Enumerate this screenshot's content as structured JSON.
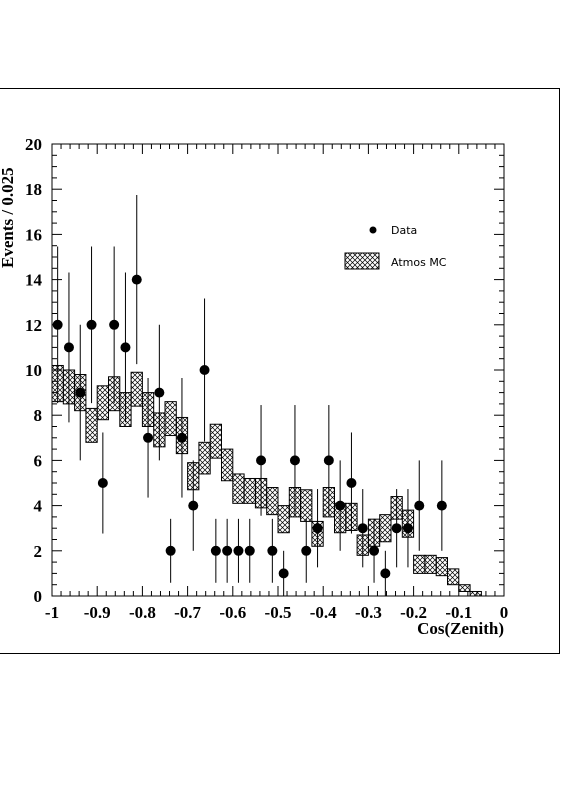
{
  "chart_data": {
    "type": "scatter",
    "title": "",
    "xlabel": "Cos(Zenith)",
    "ylabel": "Events / 0.025",
    "xlim": [
      -1,
      0
    ],
    "ylim": [
      0,
      20
    ],
    "grid": false,
    "legend_position": "top-right",
    "x_ticks": [
      {
        "value": -1,
        "label": "-1"
      },
      {
        "value": -0.9,
        "label": "-0.9"
      },
      {
        "value": -0.8,
        "label": "-0.8"
      },
      {
        "value": -0.7,
        "label": "-0.7"
      },
      {
        "value": -0.6,
        "label": "-0.6"
      },
      {
        "value": -0.5,
        "label": "-0.5"
      },
      {
        "value": -0.4,
        "label": "-0.4"
      },
      {
        "value": -0.3,
        "label": "-0.3"
      },
      {
        "value": -0.2,
        "label": "-0.2"
      },
      {
        "value": -0.1,
        "label": "-0.1"
      },
      {
        "value": 0,
        "label": "0"
      }
    ],
    "y_ticks": [
      {
        "value": 0,
        "label": "0"
      },
      {
        "value": 2,
        "label": "2"
      },
      {
        "value": 4,
        "label": "4"
      },
      {
        "value": 6,
        "label": "6"
      },
      {
        "value": 8,
        "label": "8"
      },
      {
        "value": 10,
        "label": "10"
      },
      {
        "value": 12,
        "label": "12"
      },
      {
        "value": 14,
        "label": "14"
      },
      {
        "value": 16,
        "label": "16"
      },
      {
        "value": 18,
        "label": "18"
      },
      {
        "value": 20,
        "label": "20"
      }
    ],
    "series": [
      {
        "name": "Data",
        "kind": "points-with-errors",
        "points": [
          {
            "x": -0.9875,
            "y": 12
          },
          {
            "x": -0.9625,
            "y": 11
          },
          {
            "x": -0.9375,
            "y": 9
          },
          {
            "x": -0.9125,
            "y": 12
          },
          {
            "x": -0.8875,
            "y": 5
          },
          {
            "x": -0.8625,
            "y": 12
          },
          {
            "x": -0.8375,
            "y": 11
          },
          {
            "x": -0.8125,
            "y": 14
          },
          {
            "x": -0.7875,
            "y": 7
          },
          {
            "x": -0.7625,
            "y": 9
          },
          {
            "x": -0.7375,
            "y": 2
          },
          {
            "x": -0.7125,
            "y": 7
          },
          {
            "x": -0.6875,
            "y": 4
          },
          {
            "x": -0.6625,
            "y": 10
          },
          {
            "x": -0.6375,
            "y": 2
          },
          {
            "x": -0.6125,
            "y": 2
          },
          {
            "x": -0.5875,
            "y": 2
          },
          {
            "x": -0.5625,
            "y": 2
          },
          {
            "x": -0.5375,
            "y": 6
          },
          {
            "x": -0.5125,
            "y": 2
          },
          {
            "x": -0.4875,
            "y": 1
          },
          {
            "x": -0.4625,
            "y": 6
          },
          {
            "x": -0.4375,
            "y": 2
          },
          {
            "x": -0.4125,
            "y": 3
          },
          {
            "x": -0.3875,
            "y": 6
          },
          {
            "x": -0.3625,
            "y": 4
          },
          {
            "x": -0.3375,
            "y": 5
          },
          {
            "x": -0.3125,
            "y": 3
          },
          {
            "x": -0.2875,
            "y": 2
          },
          {
            "x": -0.2625,
            "y": 1
          },
          {
            "x": -0.2375,
            "y": 3
          },
          {
            "x": -0.2125,
            "y": 3
          },
          {
            "x": -0.1875,
            "y": 4
          },
          {
            "x": -0.1375,
            "y": 4
          }
        ]
      },
      {
        "name": "Atmos MC",
        "kind": "hatched-band",
        "bins": [
          {
            "x0": -1.0,
            "x1": -0.975,
            "lo": 8.6,
            "hi": 10.2
          },
          {
            "x0": -0.975,
            "x1": -0.95,
            "lo": 8.5,
            "hi": 10.0
          },
          {
            "x0": -0.95,
            "x1": -0.925,
            "lo": 8.2,
            "hi": 9.8
          },
          {
            "x0": -0.925,
            "x1": -0.9,
            "lo": 6.8,
            "hi": 8.3
          },
          {
            "x0": -0.9,
            "x1": -0.875,
            "lo": 7.8,
            "hi": 9.3
          },
          {
            "x0": -0.875,
            "x1": -0.85,
            "lo": 8.2,
            "hi": 9.7
          },
          {
            "x0": -0.85,
            "x1": -0.825,
            "lo": 7.5,
            "hi": 9.0
          },
          {
            "x0": -0.825,
            "x1": -0.8,
            "lo": 8.4,
            "hi": 9.9
          },
          {
            "x0": -0.8,
            "x1": -0.775,
            "lo": 7.5,
            "hi": 9.0
          },
          {
            "x0": -0.775,
            "x1": -0.75,
            "lo": 6.6,
            "hi": 8.1
          },
          {
            "x0": -0.75,
            "x1": -0.725,
            "lo": 7.1,
            "hi": 8.6
          },
          {
            "x0": -0.725,
            "x1": -0.7,
            "lo": 6.3,
            "hi": 7.9
          },
          {
            "x0": -0.7,
            "x1": -0.675,
            "lo": 4.7,
            "hi": 5.9
          },
          {
            "x0": -0.675,
            "x1": -0.65,
            "lo": 5.4,
            "hi": 6.8
          },
          {
            "x0": -0.65,
            "x1": -0.625,
            "lo": 6.1,
            "hi": 7.6
          },
          {
            "x0": -0.625,
            "x1": -0.6,
            "lo": 5.1,
            "hi": 6.5
          },
          {
            "x0": -0.6,
            "x1": -0.575,
            "lo": 4.1,
            "hi": 5.4
          },
          {
            "x0": -0.575,
            "x1": -0.55,
            "lo": 4.1,
            "hi": 5.2
          },
          {
            "x0": -0.55,
            "x1": -0.525,
            "lo": 3.9,
            "hi": 5.2
          },
          {
            "x0": -0.525,
            "x1": -0.5,
            "lo": 3.6,
            "hi": 4.8
          },
          {
            "x0": -0.5,
            "x1": -0.475,
            "lo": 2.8,
            "hi": 4.0
          },
          {
            "x0": -0.475,
            "x1": -0.45,
            "lo": 3.5,
            "hi": 4.8
          },
          {
            "x0": -0.45,
            "x1": -0.425,
            "lo": 3.3,
            "hi": 4.7
          },
          {
            "x0": -0.425,
            "x1": -0.4,
            "lo": 2.2,
            "hi": 3.3
          },
          {
            "x0": -0.4,
            "x1": -0.375,
            "lo": 3.5,
            "hi": 4.8
          },
          {
            "x0": -0.375,
            "x1": -0.35,
            "lo": 2.8,
            "hi": 4.1
          },
          {
            "x0": -0.35,
            "x1": -0.325,
            "lo": 2.9,
            "hi": 4.1
          },
          {
            "x0": -0.325,
            "x1": -0.3,
            "lo": 1.8,
            "hi": 2.7
          },
          {
            "x0": -0.3,
            "x1": -0.275,
            "lo": 2.2,
            "hi": 3.4
          },
          {
            "x0": -0.275,
            "x1": -0.25,
            "lo": 2.4,
            "hi": 3.6
          },
          {
            "x0": -0.25,
            "x1": -0.225,
            "lo": 3.4,
            "hi": 4.4
          },
          {
            "x0": -0.225,
            "x1": -0.2,
            "lo": 2.6,
            "hi": 3.8
          },
          {
            "x0": -0.2,
            "x1": -0.175,
            "lo": 1.0,
            "hi": 1.8
          },
          {
            "x0": -0.175,
            "x1": -0.15,
            "lo": 1.0,
            "hi": 1.8
          },
          {
            "x0": -0.15,
            "x1": -0.125,
            "lo": 0.9,
            "hi": 1.7
          },
          {
            "x0": -0.125,
            "x1": -0.1,
            "lo": 0.5,
            "hi": 1.2
          },
          {
            "x0": -0.1,
            "x1": -0.075,
            "lo": 0.2,
            "hi": 0.5
          },
          {
            "x0": -0.075,
            "x1": -0.05,
            "lo": 0.0,
            "hi": 0.2
          }
        ]
      }
    ]
  }
}
